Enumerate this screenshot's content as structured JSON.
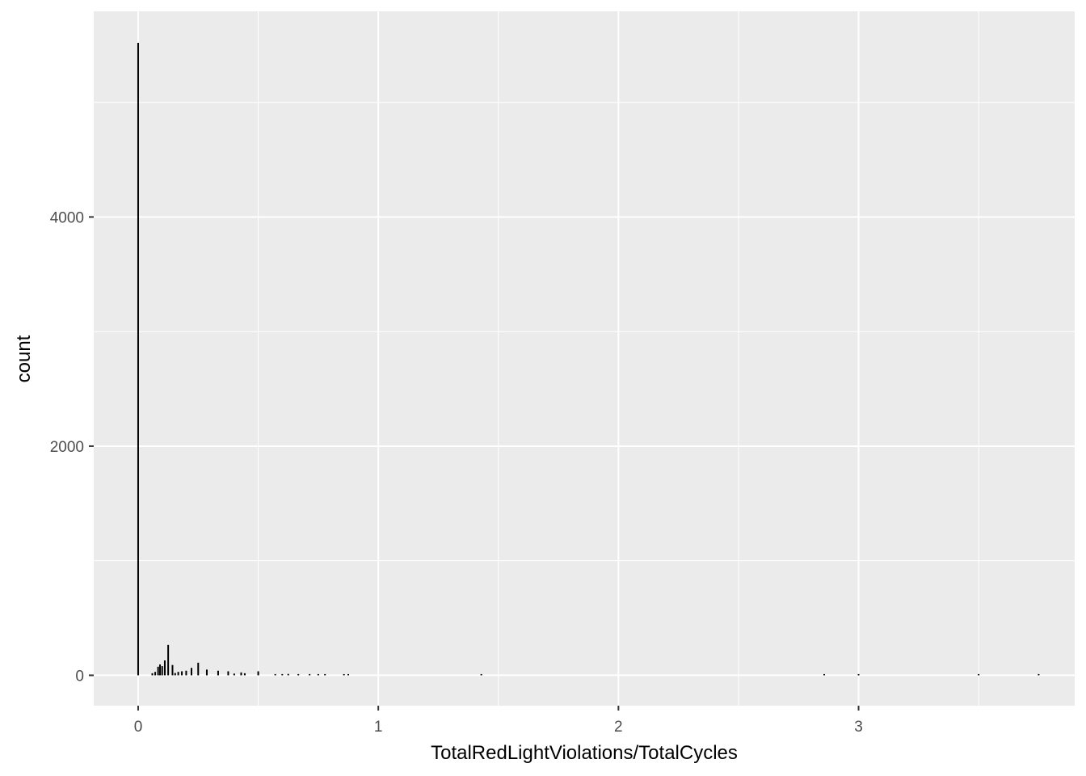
{
  "chart_data": {
    "type": "bar",
    "title": "",
    "xlabel": "TotalRedLightViolations/TotalCycles",
    "ylabel": "count",
    "xlim": [
      -0.185,
      3.9
    ],
    "ylim": [
      -265,
      5795
    ],
    "x_ticks": [
      0,
      1,
      2,
      3
    ],
    "x_tick_labels": [
      "0",
      "1",
      "2",
      "3"
    ],
    "y_ticks": [
      0,
      2000,
      4000
    ],
    "y_tick_labels": [
      "0",
      "2000",
      "4000"
    ],
    "x_minor_gridlines": [
      0.5,
      1.5,
      2.5,
      3.5
    ],
    "y_minor_gridlines": [
      1000,
      3000,
      5000
    ],
    "grid": true,
    "legend": "none",
    "colors": {
      "panel_background": "#ebebeb",
      "grid_line": "#ffffff",
      "bar": "#000000",
      "tick_label": "#4d4d4d",
      "axis_title": "#000000"
    },
    "bin_width": 0.0075,
    "bars": [
      {
        "x": 0.0,
        "count": 5520
      },
      {
        "x": 0.059,
        "count": 18
      },
      {
        "x": 0.071,
        "count": 30
      },
      {
        "x": 0.083,
        "count": 75
      },
      {
        "x": 0.091,
        "count": 95
      },
      {
        "x": 0.1,
        "count": 80
      },
      {
        "x": 0.111,
        "count": 130
      },
      {
        "x": 0.125,
        "count": 265
      },
      {
        "x": 0.143,
        "count": 90
      },
      {
        "x": 0.154,
        "count": 20
      },
      {
        "x": 0.167,
        "count": 30
      },
      {
        "x": 0.182,
        "count": 35
      },
      {
        "x": 0.2,
        "count": 40
      },
      {
        "x": 0.222,
        "count": 65
      },
      {
        "x": 0.25,
        "count": 110
      },
      {
        "x": 0.286,
        "count": 50
      },
      {
        "x": 0.333,
        "count": 40
      },
      {
        "x": 0.375,
        "count": 35
      },
      {
        "x": 0.4,
        "count": 15
      },
      {
        "x": 0.429,
        "count": 25
      },
      {
        "x": 0.444,
        "count": 18
      },
      {
        "x": 0.5,
        "count": 35
      },
      {
        "x": 0.571,
        "count": 8
      },
      {
        "x": 0.6,
        "count": 10
      },
      {
        "x": 0.625,
        "count": 12
      },
      {
        "x": 0.667,
        "count": 10
      },
      {
        "x": 0.714,
        "count": 6
      },
      {
        "x": 0.75,
        "count": 8
      },
      {
        "x": 0.778,
        "count": 5
      },
      {
        "x": 0.857,
        "count": 6
      },
      {
        "x": 0.875,
        "count": 6
      },
      {
        "x": 1.429,
        "count": 5
      },
      {
        "x": 2.857,
        "count": 4
      },
      {
        "x": 3.0,
        "count": 4
      },
      {
        "x": 3.5,
        "count": 4
      },
      {
        "x": 3.75,
        "count": 4
      }
    ]
  }
}
